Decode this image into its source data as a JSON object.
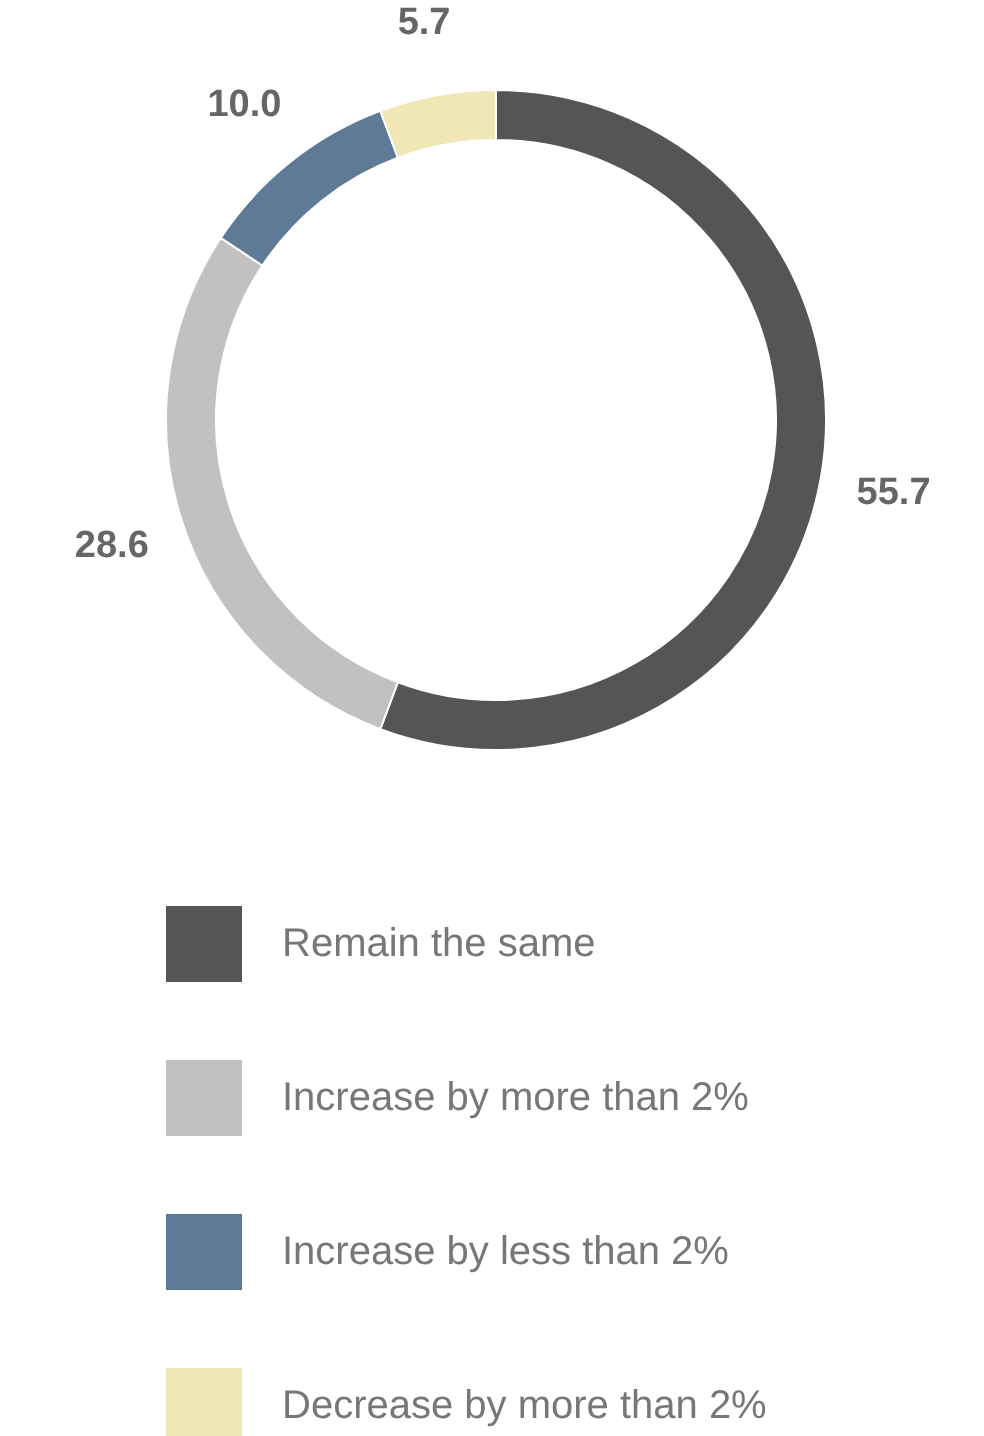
{
  "chart_data": {
    "type": "donut",
    "categories": [
      "Remain the same",
      "Increase by more than 2%",
      "Increase by less than 2%",
      "Decrease by more than 2%"
    ],
    "values": [
      55.7,
      28.6,
      10.0,
      5.7
    ],
    "colors": [
      "#555555",
      "#c1c1c1",
      "#5f7a96",
      "#f0e6b6"
    ],
    "value_labels": [
      "55.7",
      "28.6",
      "10.0",
      "5.7"
    ],
    "legend": "bottom"
  }
}
